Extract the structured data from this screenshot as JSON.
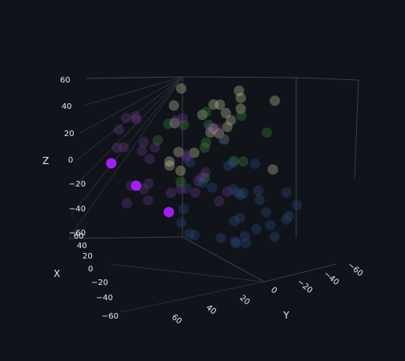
{
  "chart_data": {
    "type": "scatter",
    "dimensions": 3,
    "title": "",
    "axes": {
      "x": {
        "label": "X",
        "range": [
          -60,
          60
        ],
        "ticks": [
          "60",
          "40",
          "20",
          "0",
          "−20",
          "−40",
          "−60"
        ],
        "tick_values": [
          60,
          40,
          20,
          0,
          -20,
          -40,
          -60
        ]
      },
      "y": {
        "label": "Y",
        "range": [
          -60,
          60
        ],
        "ticks": [
          "60",
          "40",
          "20",
          "0",
          "−20",
          "−40",
          "−60"
        ],
        "tick_values": [
          60,
          40,
          20,
          0,
          -20,
          -40,
          -60
        ]
      },
      "z": {
        "label": "Z",
        "range": [
          -60,
          60
        ],
        "ticks": [
          "60",
          "40",
          "20",
          "0",
          "−20",
          "−40",
          "−60"
        ],
        "tick_values": [
          60,
          40,
          20,
          0,
          -20,
          -40,
          -60
        ]
      }
    },
    "grid": true,
    "highlighted_points": {
      "color": "#a020f0",
      "points": [
        {
          "x": -55,
          "y": 55,
          "z": 0
        },
        {
          "x": -50,
          "y": 45,
          "z": -20
        },
        {
          "x": -45,
          "y": 35,
          "z": -42
        }
      ]
    },
    "faded_clusters": [
      {
        "color": "#c8c8a0",
        "count": 22
      },
      {
        "color": "#3a8a3a",
        "count": 14
      },
      {
        "color": "#6a3a8a",
        "count": 30
      },
      {
        "color": "#2a4a7a",
        "count": 32
      }
    ]
  }
}
